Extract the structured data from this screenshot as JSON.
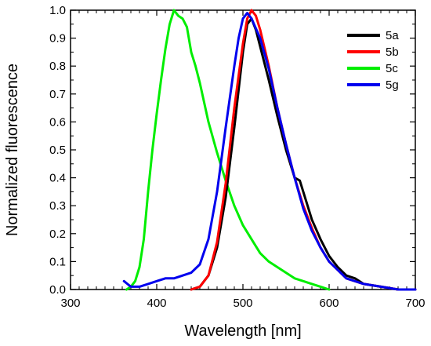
{
  "chart_data": {
    "type": "line",
    "xlabel": "Wavelength [nm]",
    "ylabel": "Normalized fluorescence",
    "xlim": [
      300,
      700
    ],
    "ylim": [
      0.0,
      1.0
    ],
    "x_ticks": [
      "300",
      "400",
      "500",
      "600",
      "700"
    ],
    "y_ticks": [
      "0.0",
      "0.1",
      "0.2",
      "0.3",
      "0.4",
      "0.5",
      "0.6",
      "0.7",
      "0.8",
      "0.9",
      "1.0"
    ],
    "grid": false,
    "legend_position": "top-right",
    "series": [
      {
        "name": "5a",
        "color": "#000000",
        "points": [
          [
            440,
            0.0
          ],
          [
            450,
            0.01
          ],
          [
            460,
            0.05
          ],
          [
            470,
            0.15
          ],
          [
            480,
            0.33
          ],
          [
            490,
            0.58
          ],
          [
            500,
            0.85
          ],
          [
            505,
            0.95
          ],
          [
            510,
            0.97
          ],
          [
            515,
            0.93
          ],
          [
            520,
            0.87
          ],
          [
            530,
            0.75
          ],
          [
            540,
            0.62
          ],
          [
            550,
            0.5
          ],
          [
            560,
            0.4
          ],
          [
            566,
            0.39
          ],
          [
            570,
            0.35
          ],
          [
            580,
            0.25
          ],
          [
            590,
            0.18
          ],
          [
            600,
            0.12
          ],
          [
            610,
            0.08
          ],
          [
            620,
            0.05
          ],
          [
            630,
            0.04
          ],
          [
            640,
            0.02
          ],
          [
            660,
            0.01
          ],
          [
            680,
            0.0
          ],
          [
            700,
            0.0
          ]
        ]
      },
      {
        "name": "5b",
        "color": "#ff0000",
        "points": [
          [
            440,
            0.0
          ],
          [
            450,
            0.01
          ],
          [
            460,
            0.05
          ],
          [
            470,
            0.17
          ],
          [
            480,
            0.38
          ],
          [
            490,
            0.65
          ],
          [
            500,
            0.88
          ],
          [
            505,
            0.97
          ],
          [
            510,
            1.0
          ],
          [
            515,
            0.98
          ],
          [
            520,
            0.93
          ],
          [
            530,
            0.8
          ],
          [
            540,
            0.65
          ],
          [
            550,
            0.52
          ],
          [
            560,
            0.4
          ],
          [
            570,
            0.3
          ],
          [
            580,
            0.22
          ],
          [
            590,
            0.15
          ],
          [
            600,
            0.1
          ],
          [
            610,
            0.07
          ],
          [
            620,
            0.04
          ],
          [
            640,
            0.02
          ],
          [
            660,
            0.01
          ],
          [
            680,
            0.0
          ],
          [
            700,
            0.0
          ]
        ]
      },
      {
        "name": "5c",
        "color": "#00ee00",
        "points": [
          [
            365,
            0.0
          ],
          [
            370,
            0.01
          ],
          [
            375,
            0.03
          ],
          [
            380,
            0.08
          ],
          [
            385,
            0.18
          ],
          [
            390,
            0.35
          ],
          [
            395,
            0.5
          ],
          [
            400,
            0.63
          ],
          [
            405,
            0.75
          ],
          [
            410,
            0.86
          ],
          [
            415,
            0.95
          ],
          [
            420,
            1.0
          ],
          [
            425,
            0.98
          ],
          [
            430,
            0.97
          ],
          [
            435,
            0.94
          ],
          [
            440,
            0.85
          ],
          [
            445,
            0.8
          ],
          [
            450,
            0.74
          ],
          [
            455,
            0.67
          ],
          [
            460,
            0.6
          ],
          [
            470,
            0.49
          ],
          [
            480,
            0.39
          ],
          [
            490,
            0.3
          ],
          [
            500,
            0.23
          ],
          [
            510,
            0.18
          ],
          [
            520,
            0.13
          ],
          [
            530,
            0.1
          ],
          [
            540,
            0.08
          ],
          [
            550,
            0.06
          ],
          [
            560,
            0.04
          ],
          [
            570,
            0.03
          ],
          [
            580,
            0.02
          ],
          [
            590,
            0.01
          ],
          [
            600,
            0.0
          ]
        ]
      },
      {
        "name": "5g",
        "color": "#0000ee",
        "points": [
          [
            362,
            0.03
          ],
          [
            366,
            0.02
          ],
          [
            370,
            0.01
          ],
          [
            380,
            0.01
          ],
          [
            390,
            0.02
          ],
          [
            400,
            0.03
          ],
          [
            410,
            0.04
          ],
          [
            420,
            0.04
          ],
          [
            430,
            0.05
          ],
          [
            440,
            0.06
          ],
          [
            450,
            0.09
          ],
          [
            460,
            0.18
          ],
          [
            470,
            0.35
          ],
          [
            480,
            0.58
          ],
          [
            490,
            0.8
          ],
          [
            495,
            0.9
          ],
          [
            500,
            0.97
          ],
          [
            505,
            0.99
          ],
          [
            510,
            0.97
          ],
          [
            520,
            0.9
          ],
          [
            530,
            0.79
          ],
          [
            540,
            0.65
          ],
          [
            550,
            0.52
          ],
          [
            560,
            0.4
          ],
          [
            570,
            0.29
          ],
          [
            580,
            0.21
          ],
          [
            590,
            0.15
          ],
          [
            600,
            0.1
          ],
          [
            610,
            0.07
          ],
          [
            620,
            0.04
          ],
          [
            640,
            0.02
          ],
          [
            660,
            0.01
          ],
          [
            680,
            0.0
          ],
          [
            700,
            0.0
          ]
        ]
      }
    ]
  }
}
